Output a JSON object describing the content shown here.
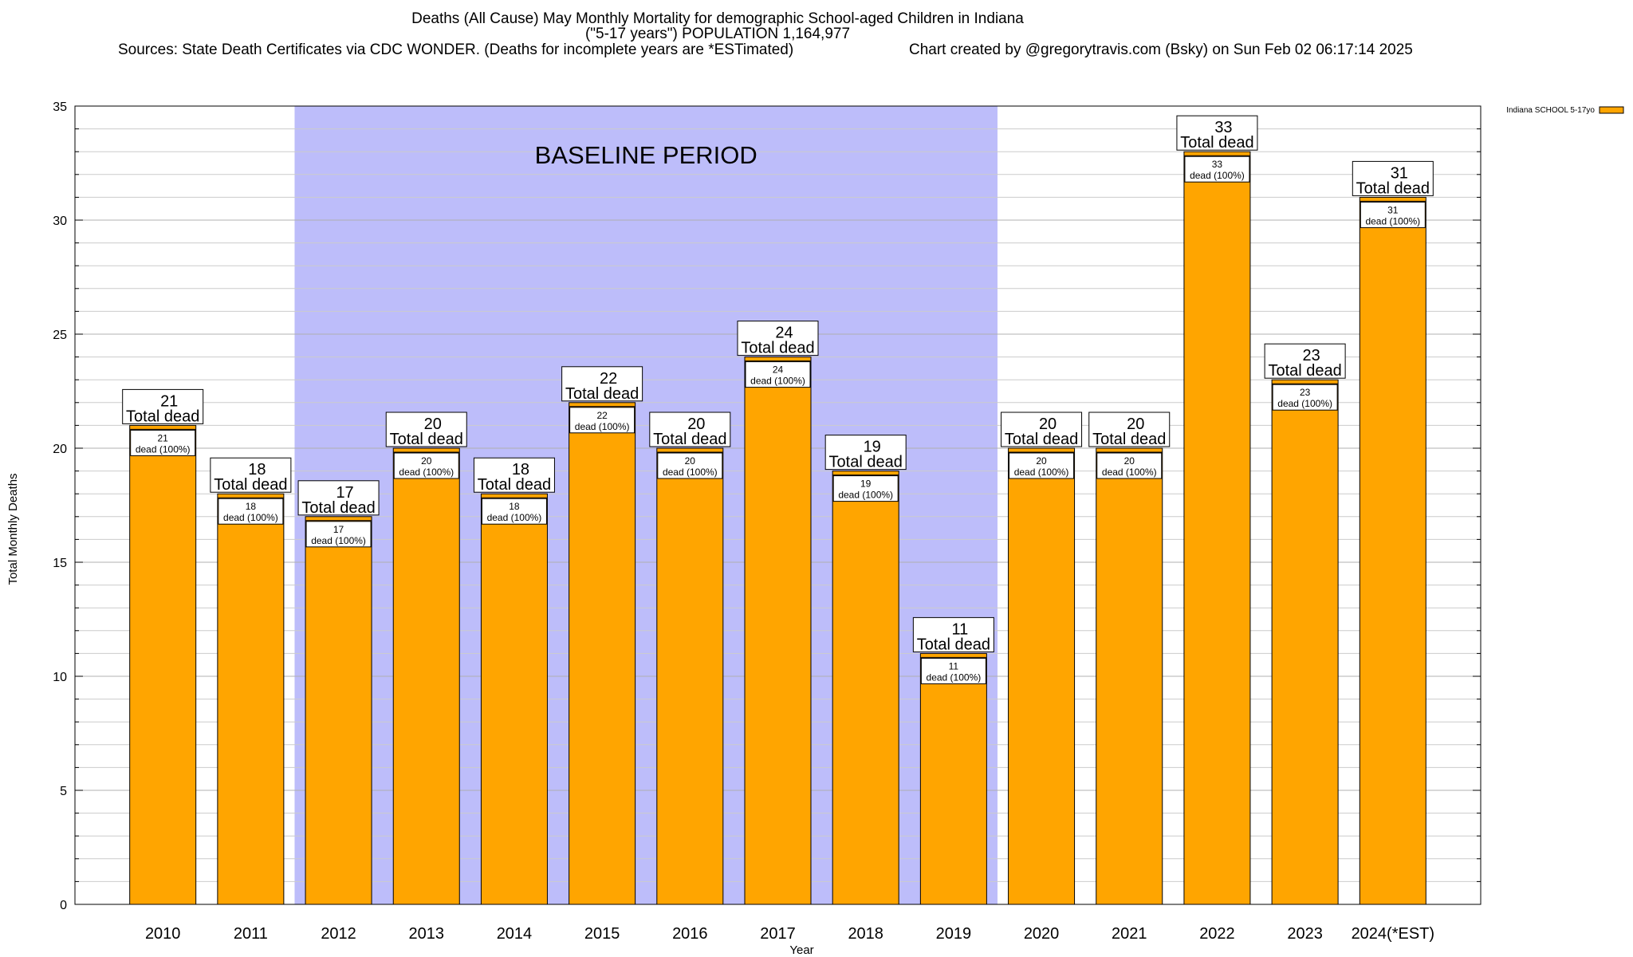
{
  "title": {
    "line1": "Deaths (All Cause) May Monthly Mortality for demographic School-aged Children in Indiana",
    "line2": "(\"5-17 years\") POPULATION 1,164,977",
    "line3_left": "Sources: State Death Certificates via CDC WONDER. (Deaths for incomplete years are *ESTimated)",
    "line3_right": "Chart created by @gregorytravis.com (Bsky) on Sun Feb 02 06:17:14 2025"
  },
  "chart_data": {
    "type": "bar",
    "categories": [
      "2010",
      "2011",
      "2012",
      "2013",
      "2014",
      "2015",
      "2016",
      "2017",
      "2018",
      "2019",
      "2020",
      "2021",
      "2022",
      "2023",
      "2024(*EST)"
    ],
    "series": [
      {
        "name": "Indiana SCHOOL 5-17yo",
        "values": [
          21,
          18,
          17,
          20,
          18,
          22,
          20,
          24,
          19,
          11,
          20,
          20,
          33,
          23,
          31
        ],
        "color": "#FFA500"
      }
    ],
    "xlabel": "Year",
    "ylabel": "Total Monthly Deaths",
    "ylim": [
      0,
      35
    ],
    "yticks": [
      0,
      5,
      10,
      15,
      20,
      25,
      30,
      35
    ],
    "grid": true,
    "legend_position": "top-right",
    "total_label_text": "Total dead",
    "inner_label_text": "dead (100%)",
    "baseline": {
      "label": "BASELINE PERIOD",
      "start": "2012",
      "end": "2019",
      "color": "#BDBDFA"
    }
  }
}
